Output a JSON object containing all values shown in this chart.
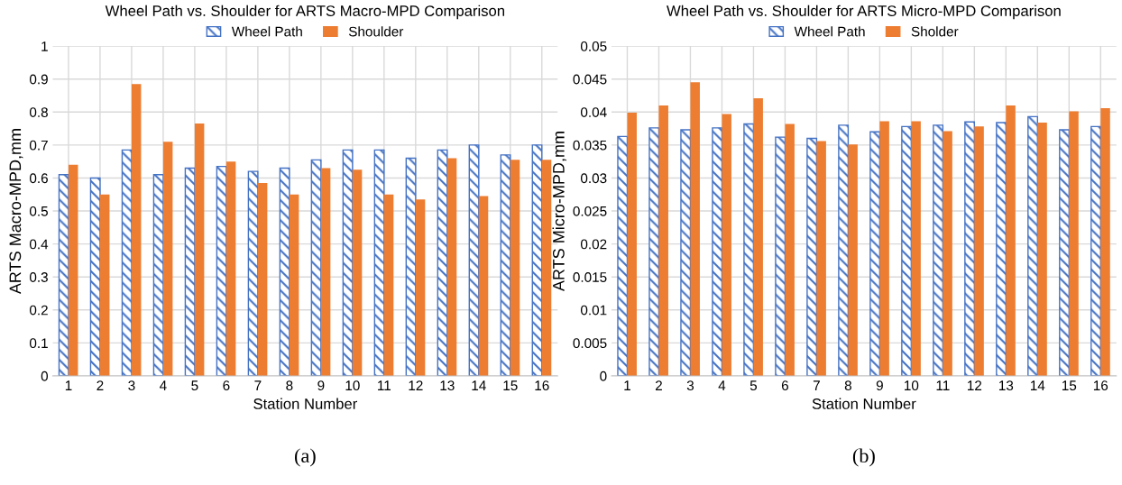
{
  "chart_data": [
    {
      "type": "bar",
      "title": "Wheel Path vs. Shoulder for ARTS Macro-MPD Comparison",
      "xlabel": "Station Number",
      "ylabel": "ARTS Macro-MPD,mm",
      "annotations": [
        "(a)"
      ],
      "categories": [
        "1",
        "2",
        "3",
        "4",
        "5",
        "6",
        "7",
        "8",
        "9",
        "10",
        "11",
        "12",
        "13",
        "14",
        "15",
        "16"
      ],
      "series": [
        {
          "name": "Wheel Path",
          "color": "#4472c4",
          "values": [
            0.61,
            0.6,
            0.685,
            0.61,
            0.63,
            0.635,
            0.62,
            0.63,
            0.655,
            0.685,
            0.685,
            0.66,
            0.685,
            0.7,
            0.67,
            0.7
          ]
        },
        {
          "name": "Shoulder",
          "color": "#ed7d31",
          "values": [
            0.64,
            0.55,
            0.885,
            0.71,
            0.765,
            0.65,
            0.585,
            0.55,
            0.63,
            0.625,
            0.55,
            0.535,
            0.66,
            0.545,
            0.655,
            0.655
          ]
        }
      ],
      "ylim": [
        0,
        1
      ],
      "yticks": [
        0,
        0.1,
        0.2,
        0.3,
        0.4,
        0.5,
        0.6,
        0.7,
        0.8,
        0.9,
        1
      ],
      "grid": true,
      "legend": "top"
    },
    {
      "type": "bar",
      "title": "Wheel Path vs. Shoulder for ARTS Micro-MPD Comparison",
      "xlabel": "Station Number",
      "ylabel": "ARTS Micro-MPD,mm",
      "annotations": [
        "(b)"
      ],
      "categories": [
        "1",
        "2",
        "3",
        "4",
        "5",
        "6",
        "7",
        "8",
        "9",
        "10",
        "11",
        "12",
        "13",
        "14",
        "15",
        "16"
      ],
      "series": [
        {
          "name": "Wheel Path",
          "color": "#4472c4",
          "values": [
            0.0363,
            0.0376,
            0.0373,
            0.0376,
            0.0382,
            0.0362,
            0.036,
            0.038,
            0.037,
            0.0378,
            0.038,
            0.0385,
            0.0384,
            0.0393,
            0.0373,
            0.0378
          ]
        },
        {
          "name": "Sholder",
          "color": "#ed7d31",
          "values": [
            0.0399,
            0.041,
            0.0445,
            0.0397,
            0.0421,
            0.0382,
            0.0356,
            0.0351,
            0.0386,
            0.0386,
            0.0371,
            0.0378,
            0.041,
            0.0384,
            0.0401,
            0.0406
          ]
        }
      ],
      "ylim": [
        0,
        0.05
      ],
      "yticks": [
        0,
        0.005,
        0.01,
        0.015,
        0.02,
        0.025,
        0.03,
        0.035,
        0.04,
        0.045,
        0.05
      ],
      "grid": true,
      "legend": "top"
    }
  ]
}
